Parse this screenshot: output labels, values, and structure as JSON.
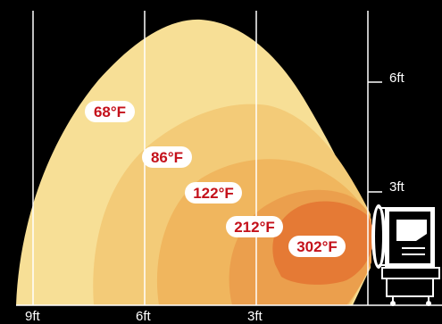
{
  "diagram": {
    "colors": {
      "background": "#000000",
      "grid_line": "#ffffff",
      "zone_68": "#f7df96",
      "zone_86": "#f3cb78",
      "zone_122": "#f0b65e",
      "zone_212": "#eb9f4d",
      "zone_302": "#e57a35",
      "label_text": "#c4111b",
      "label_pill": "#ffffff"
    },
    "x_axis_labels": [
      "9ft",
      "6ft",
      "3ft"
    ],
    "y_axis_labels": [
      "6ft",
      "3ft"
    ],
    "temperature_zones": [
      {
        "label": "68°F"
      },
      {
        "label": "86°F"
      },
      {
        "label": "122°F"
      },
      {
        "label": "212°F"
      },
      {
        "label": "302°F"
      }
    ],
    "device": {
      "icon": "heater-icon"
    }
  }
}
